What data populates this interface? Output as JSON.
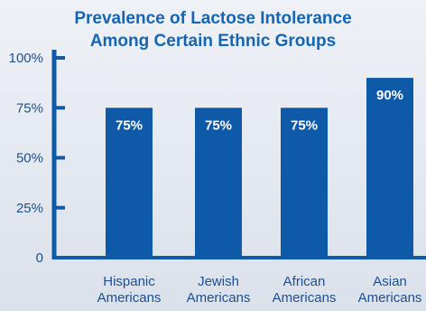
{
  "chart_data": {
    "type": "bar",
    "title_lines": [
      "Prevalence of Lactose Intolerance",
      "Among Certain Ethnic Groups"
    ],
    "categories": [
      [
        "Hispanic",
        "Americans"
      ],
      [
        "Jewish",
        "Americans"
      ],
      [
        "African",
        "Americans"
      ],
      [
        "Asian",
        "Americans"
      ]
    ],
    "values": [
      75,
      75,
      75,
      90
    ],
    "data_labels": [
      "75%",
      "75%",
      "75%",
      "90%"
    ],
    "ylim": [
      0,
      100
    ],
    "yticks": [
      0,
      25,
      50,
      75,
      100
    ],
    "ytick_labels": [
      "0",
      "25%",
      "50%",
      "75%",
      "100%"
    ],
    "xlabel": "",
    "ylabel": "",
    "bar_color": "#0f5aa8",
    "axis_color": "#0f5aa8",
    "text_color": "#1c4f91",
    "title_color": "#1565b3"
  }
}
